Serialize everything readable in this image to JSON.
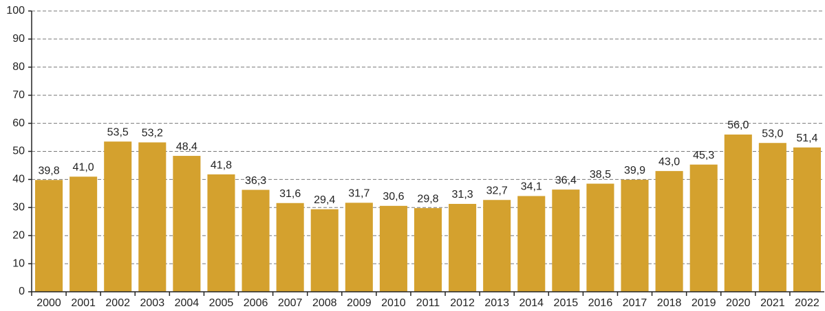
{
  "chart_data": {
    "type": "bar",
    "categories": [
      "2000",
      "2001",
      "2002",
      "2003",
      "2004",
      "2005",
      "2006",
      "2007",
      "2008",
      "2009",
      "2010",
      "2011",
      "2012",
      "2013",
      "2014",
      "2015",
      "2016",
      "2017",
      "2018",
      "2019",
      "2020",
      "2021",
      "2022"
    ],
    "values": [
      39.8,
      41.0,
      53.5,
      53.2,
      48.4,
      41.8,
      36.3,
      31.6,
      29.4,
      31.7,
      30.6,
      29.8,
      31.3,
      32.7,
      34.1,
      36.4,
      38.5,
      39.9,
      43.0,
      45.3,
      56.0,
      53.0,
      51.4
    ],
    "value_labels": [
      "39,8",
      "41,0",
      "53,5",
      "53,2",
      "48,4",
      "41,8",
      "36,3",
      "31,6",
      "29,4",
      "31,7",
      "30,6",
      "29,8",
      "31,3",
      "32,7",
      "34,1",
      "36,4",
      "38,5",
      "39,9",
      "43,0",
      "45,3",
      "56,0",
      "53,0",
      "51,4"
    ],
    "color": "#d4a12e",
    "ylim": [
      0,
      100
    ],
    "yticks": [
      0,
      10,
      20,
      30,
      40,
      50,
      60,
      70,
      80,
      90,
      100
    ],
    "grid": true
  }
}
